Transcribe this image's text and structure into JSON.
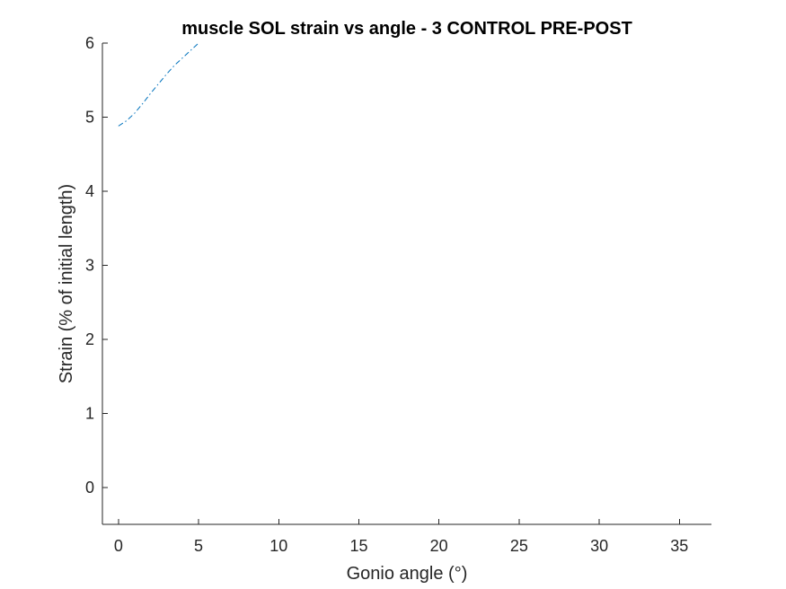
{
  "chart_data": {
    "type": "line",
    "title": "muscle SOL strain vs angle - 3 CONTROL PRE-POST",
    "xlabel": "Gonio angle (°)",
    "ylabel": "Strain (% of initial length)",
    "xlim": [
      -1,
      37
    ],
    "ylim": [
      -0.5,
      6
    ],
    "xticks": [
      0,
      5,
      10,
      15,
      20,
      25,
      30,
      35
    ],
    "yticks": [
      0,
      1,
      2,
      3,
      4,
      5,
      6
    ],
    "grid": false,
    "box": false,
    "series": [
      {
        "color": "#0072BD",
        "line_style": "dash-dot",
        "x": [
          0,
          0.5,
          1,
          1.5,
          2,
          2.5,
          3,
          3.5,
          4,
          4.5,
          5
        ],
        "y": [
          4.88,
          4.95,
          5.05,
          5.18,
          5.32,
          5.45,
          5.58,
          5.7,
          5.8,
          5.9,
          6.0
        ]
      }
    ]
  }
}
